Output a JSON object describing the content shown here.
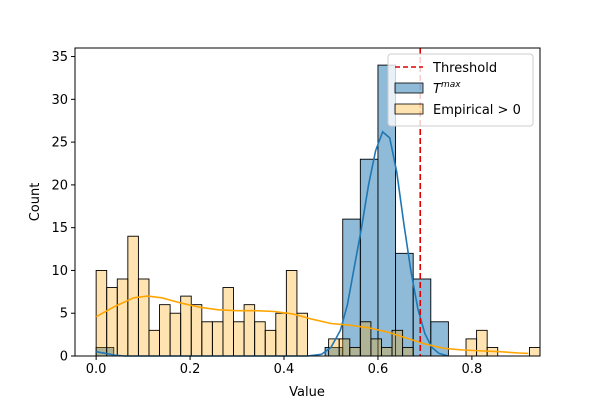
{
  "chart_data": {
    "type": "histogram",
    "xlabel": "Value",
    "ylabel": "Count",
    "xlim": [
      -0.045,
      0.945
    ],
    "ylim": [
      0,
      36
    ],
    "xticks": [
      0.0,
      0.2,
      0.4,
      0.6,
      0.8
    ],
    "xtick_labels": [
      "0.0",
      "0.2",
      "0.4",
      "0.6",
      "0.8"
    ],
    "yticks": [
      0,
      5,
      10,
      15,
      20,
      25,
      30,
      35
    ],
    "ytick_labels": [
      "0",
      "5",
      "10",
      "15",
      "20",
      "25",
      "30",
      "35"
    ],
    "grid": false,
    "legend_position": "upper right",
    "threshold": {
      "name": "Threshold",
      "x": 0.69,
      "color": "#e00000"
    },
    "series": [
      {
        "name": "T^max",
        "name_base": "T",
        "name_sup": "max",
        "color": "#1f77b4",
        "alpha": 0.5,
        "bins": [
          {
            "x0": 0.0,
            "x1": 0.0375,
            "count": 1
          },
          {
            "x0": 0.4875,
            "x1": 0.525,
            "count": 1
          },
          {
            "x0": 0.525,
            "x1": 0.5625,
            "count": 16
          },
          {
            "x0": 0.5625,
            "x1": 0.6,
            "count": 23
          },
          {
            "x0": 0.6,
            "x1": 0.6375,
            "count": 34
          },
          {
            "x0": 0.6375,
            "x1": 0.675,
            "count": 12
          },
          {
            "x0": 0.675,
            "x1": 0.7125,
            "count": 9
          },
          {
            "x0": 0.7125,
            "x1": 0.75,
            "count": 4
          }
        ],
        "kde": [
          [
            0.0,
            0.5
          ],
          [
            0.02,
            0.3
          ],
          [
            0.04,
            0.1
          ],
          [
            0.06,
            0.0
          ],
          [
            0.1,
            0.0
          ],
          [
            0.3,
            0.0
          ],
          [
            0.45,
            0.0
          ],
          [
            0.48,
            0.2
          ],
          [
            0.5,
            1.0
          ],
          [
            0.52,
            3.0
          ],
          [
            0.535,
            6.0
          ],
          [
            0.55,
            10.5
          ],
          [
            0.565,
            15.0
          ],
          [
            0.58,
            20.0
          ],
          [
            0.595,
            24.0
          ],
          [
            0.61,
            26.2
          ],
          [
            0.625,
            25.5
          ],
          [
            0.64,
            21.5
          ],
          [
            0.655,
            15.5
          ],
          [
            0.67,
            10.0
          ],
          [
            0.685,
            5.5
          ],
          [
            0.7,
            2.6
          ],
          [
            0.715,
            1.0
          ],
          [
            0.73,
            0.3
          ],
          [
            0.75,
            0.0
          ]
        ]
      },
      {
        "name": "Empirical > 0",
        "color": "#ffa500",
        "alpha": 0.3,
        "bins": [
          {
            "x0": 0.0,
            "x1": 0.0225,
            "count": 10
          },
          {
            "x0": 0.0225,
            "x1": 0.045,
            "count": 8
          },
          {
            "x0": 0.045,
            "x1": 0.0675,
            "count": 9
          },
          {
            "x0": 0.0675,
            "x1": 0.09,
            "count": 14
          },
          {
            "x0": 0.09,
            "x1": 0.1125,
            "count": 9
          },
          {
            "x0": 0.1125,
            "x1": 0.135,
            "count": 3
          },
          {
            "x0": 0.135,
            "x1": 0.1575,
            "count": 6
          },
          {
            "x0": 0.1575,
            "x1": 0.18,
            "count": 5
          },
          {
            "x0": 0.18,
            "x1": 0.2025,
            "count": 7
          },
          {
            "x0": 0.2025,
            "x1": 0.225,
            "count": 6
          },
          {
            "x0": 0.225,
            "x1": 0.2475,
            "count": 4
          },
          {
            "x0": 0.2475,
            "x1": 0.27,
            "count": 4
          },
          {
            "x0": 0.27,
            "x1": 0.2925,
            "count": 8
          },
          {
            "x0": 0.2925,
            "x1": 0.315,
            "count": 4
          },
          {
            "x0": 0.315,
            "x1": 0.3375,
            "count": 6
          },
          {
            "x0": 0.3375,
            "x1": 0.36,
            "count": 4
          },
          {
            "x0": 0.36,
            "x1": 0.3825,
            "count": 3
          },
          {
            "x0": 0.3825,
            "x1": 0.405,
            "count": 5
          },
          {
            "x0": 0.405,
            "x1": 0.4275,
            "count": 10
          },
          {
            "x0": 0.4275,
            "x1": 0.45,
            "count": 5
          },
          {
            "x0": 0.495,
            "x1": 0.5175,
            "count": 2
          },
          {
            "x0": 0.5175,
            "x1": 0.54,
            "count": 2
          },
          {
            "x0": 0.54,
            "x1": 0.5625,
            "count": 1
          },
          {
            "x0": 0.5625,
            "x1": 0.585,
            "count": 4
          },
          {
            "x0": 0.585,
            "x1": 0.6075,
            "count": 2
          },
          {
            "x0": 0.6075,
            "x1": 0.63,
            "count": 1
          },
          {
            "x0": 0.63,
            "x1": 0.6525,
            "count": 3
          },
          {
            "x0": 0.6525,
            "x1": 0.675,
            "count": 1
          },
          {
            "x0": 0.7875,
            "x1": 0.81,
            "count": 2
          },
          {
            "x0": 0.81,
            "x1": 0.8325,
            "count": 3
          },
          {
            "x0": 0.8325,
            "x1": 0.855,
            "count": 1
          },
          {
            "x0": 0.9225,
            "x1": 0.945,
            "count": 1
          }
        ],
        "kde": [
          [
            0.0,
            4.6
          ],
          [
            0.04,
            5.8
          ],
          [
            0.08,
            6.8
          ],
          [
            0.11,
            7.0
          ],
          [
            0.14,
            6.8
          ],
          [
            0.18,
            6.2
          ],
          [
            0.22,
            5.7
          ],
          [
            0.26,
            5.4
          ],
          [
            0.3,
            5.3
          ],
          [
            0.34,
            5.3
          ],
          [
            0.38,
            5.2
          ],
          [
            0.42,
            4.9
          ],
          [
            0.46,
            4.3
          ],
          [
            0.5,
            3.8
          ],
          [
            0.54,
            3.6
          ],
          [
            0.58,
            3.3
          ],
          [
            0.62,
            2.8
          ],
          [
            0.66,
            2.1
          ],
          [
            0.7,
            1.4
          ],
          [
            0.74,
            0.9
          ],
          [
            0.78,
            0.7
          ],
          [
            0.82,
            0.6
          ],
          [
            0.86,
            0.5
          ],
          [
            0.9,
            0.35
          ],
          [
            0.92,
            0.3
          ]
        ]
      }
    ]
  }
}
